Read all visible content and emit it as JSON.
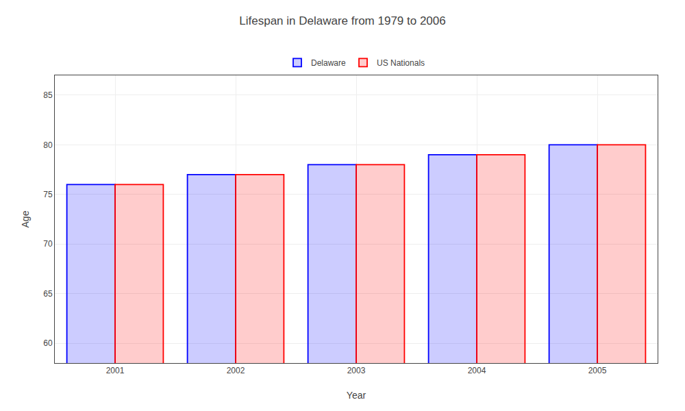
{
  "chart_data": {
    "type": "bar",
    "title": "Lifespan in Delaware from 1979 to 2006",
    "x_label": "Year",
    "y_label": "Age",
    "categories": [
      "2001",
      "2002",
      "2003",
      "2004",
      "2005"
    ],
    "series": [
      {
        "name": "Delaware",
        "color": "#0000ff",
        "values": [
          76,
          77,
          78,
          79,
          80
        ]
      },
      {
        "name": "US Nationals",
        "color": "#ff0000",
        "values": [
          76,
          77,
          78,
          79,
          80
        ]
      }
    ],
    "ylim": [
      58,
      87
    ],
    "yticks": [
      60,
      65,
      70,
      75,
      80,
      85
    ],
    "grid": true,
    "legend": "top"
  }
}
